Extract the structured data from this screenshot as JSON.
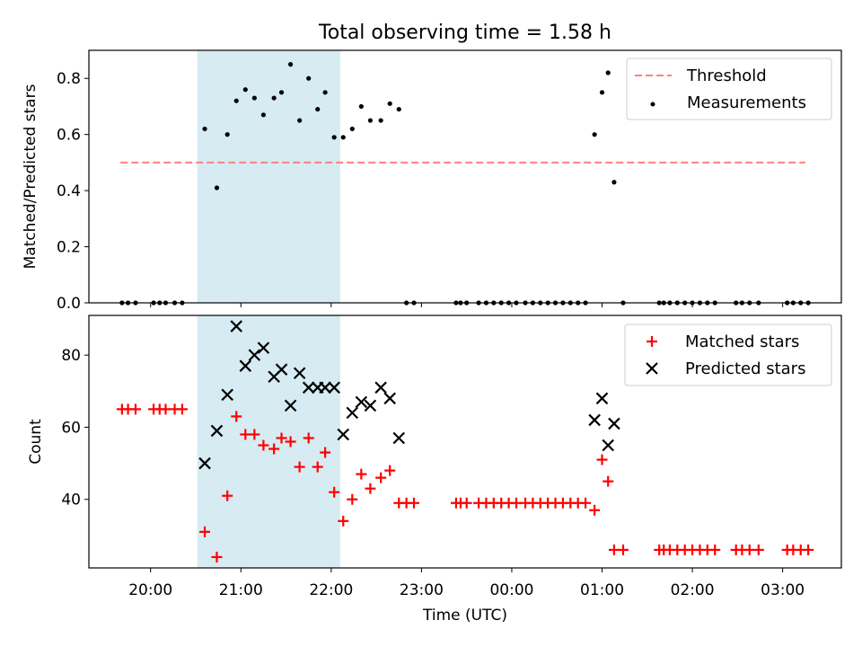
{
  "chart_data": {
    "title": "Total observing time = 1.58 h",
    "xlabel": "Time (UTC)",
    "x_range": [
      "19:19",
      "03:39"
    ],
    "x_ticks": [
      "20:00",
      "21:00",
      "22:00",
      "23:00",
      "00:00",
      "01:00",
      "02:00",
      "03:00"
    ],
    "shaded_interval": {
      "start": "20:31",
      "end": "22:06",
      "color": "#add8e6"
    },
    "panels": [
      {
        "type": "scatter",
        "ylabel": "Matched/Predicted stars",
        "ylim": [
          0,
          0.9
        ],
        "y_ticks": [
          "0.0",
          "0.2",
          "0.4",
          "0.6",
          "0.8"
        ],
        "legend": {
          "position": "top-right"
        },
        "series": [
          {
            "name": "Threshold",
            "type": "line",
            "style": "dashed",
            "color": "#ff7f7f",
            "x": [
              "19:40",
              "03:15"
            ],
            "y": [
              0.5,
              0.5
            ]
          },
          {
            "name": "Measurements",
            "type": "scatter",
            "marker": "dot",
            "color": "#000000",
            "points": [
              [
                "19:41",
                0.0
              ],
              [
                "19:45",
                0.0
              ],
              [
                "19:50",
                0.0
              ],
              [
                "20:02",
                0.0
              ],
              [
                "20:06",
                0.0
              ],
              [
                "20:10",
                0.0
              ],
              [
                "20:16",
                0.0
              ],
              [
                "20:21",
                0.0
              ],
              [
                "20:36",
                0.62
              ],
              [
                "20:44",
                0.41
              ],
              [
                "20:51",
                0.6
              ],
              [
                "20:57",
                0.72
              ],
              [
                "21:03",
                0.76
              ],
              [
                "21:09",
                0.73
              ],
              [
                "21:15",
                0.67
              ],
              [
                "21:22",
                0.73
              ],
              [
                "21:27",
                0.75
              ],
              [
                "21:33",
                0.85
              ],
              [
                "21:39",
                0.65
              ],
              [
                "21:45",
                0.8
              ],
              [
                "21:51",
                0.69
              ],
              [
                "21:56",
                0.75
              ],
              [
                "22:02",
                0.59
              ],
              [
                "22:08",
                0.59
              ],
              [
                "22:14",
                0.62
              ],
              [
                "22:20",
                0.7
              ],
              [
                "22:26",
                0.65
              ],
              [
                "22:33",
                0.65
              ],
              [
                "22:39",
                0.71
              ],
              [
                "22:45",
                0.69
              ],
              [
                "22:50",
                0.0
              ],
              [
                "22:55",
                0.0
              ],
              [
                "23:23",
                0.0
              ],
              [
                "23:26",
                0.0
              ],
              [
                "23:30",
                0.0
              ],
              [
                "23:38",
                0.0
              ],
              [
                "23:43",
                0.0
              ],
              [
                "23:48",
                0.0
              ],
              [
                "23:53",
                0.0
              ],
              [
                "23:58",
                0.0
              ],
              [
                "00:03",
                0.0
              ],
              [
                "00:09",
                0.0
              ],
              [
                "00:14",
                0.0
              ],
              [
                "00:19",
                0.0
              ],
              [
                "00:24",
                0.0
              ],
              [
                "00:29",
                0.0
              ],
              [
                "00:34",
                0.0
              ],
              [
                "00:39",
                0.0
              ],
              [
                "00:44",
                0.0
              ],
              [
                "00:49",
                0.0
              ],
              [
                "00:55",
                0.6
              ],
              [
                "01:00",
                0.75
              ],
              [
                "01:04",
                0.82
              ],
              [
                "01:08",
                0.43
              ],
              [
                "01:14",
                0.0
              ],
              [
                "01:38",
                0.0
              ],
              [
                "01:41",
                0.0
              ],
              [
                "01:45",
                0.0
              ],
              [
                "01:50",
                0.0
              ],
              [
                "01:55",
                0.0
              ],
              [
                "02:00",
                0.0
              ],
              [
                "02:05",
                0.0
              ],
              [
                "02:10",
                0.0
              ],
              [
                "02:15",
                0.0
              ],
              [
                "02:29",
                0.0
              ],
              [
                "02:33",
                0.0
              ],
              [
                "02:38",
                0.0
              ],
              [
                "02:44",
                0.0
              ],
              [
                "03:03",
                0.0
              ],
              [
                "03:07",
                0.0
              ],
              [
                "03:12",
                0.0
              ],
              [
                "03:17",
                0.0
              ]
            ]
          }
        ]
      },
      {
        "type": "scatter",
        "ylabel": "Count",
        "ylim": [
          21,
          91
        ],
        "y_ticks": [
          "40",
          "60",
          "80"
        ],
        "legend": {
          "position": "top-right"
        },
        "series": [
          {
            "name": "Matched stars",
            "marker": "plus",
            "color": "#ff0000",
            "points": [
              [
                "19:41",
                65
              ],
              [
                "19:45",
                65
              ],
              [
                "19:50",
                65
              ],
              [
                "20:02",
                65
              ],
              [
                "20:06",
                65
              ],
              [
                "20:10",
                65
              ],
              [
                "20:16",
                65
              ],
              [
                "20:21",
                65
              ],
              [
                "20:36",
                31
              ],
              [
                "20:44",
                24
              ],
              [
                "20:51",
                41
              ],
              [
                "20:57",
                63
              ],
              [
                "21:03",
                58
              ],
              [
                "21:09",
                58
              ],
              [
                "21:15",
                55
              ],
              [
                "21:22",
                54
              ],
              [
                "21:27",
                57
              ],
              [
                "21:33",
                56
              ],
              [
                "21:39",
                49
              ],
              [
                "21:45",
                57
              ],
              [
                "21:51",
                49
              ],
              [
                "21:56",
                53
              ],
              [
                "22:02",
                42
              ],
              [
                "22:08",
                34
              ],
              [
                "22:14",
                40
              ],
              [
                "22:20",
                47
              ],
              [
                "22:26",
                43
              ],
              [
                "22:33",
                46
              ],
              [
                "22:39",
                48
              ],
              [
                "22:45",
                39
              ],
              [
                "22:50",
                39
              ],
              [
                "22:55",
                39
              ],
              [
                "23:23",
                39
              ],
              [
                "23:26",
                39
              ],
              [
                "23:30",
                39
              ],
              [
                "23:38",
                39
              ],
              [
                "23:43",
                39
              ],
              [
                "23:48",
                39
              ],
              [
                "23:53",
                39
              ],
              [
                "23:58",
                39
              ],
              [
                "00:03",
                39
              ],
              [
                "00:09",
                39
              ],
              [
                "00:14",
                39
              ],
              [
                "00:19",
                39
              ],
              [
                "00:24",
                39
              ],
              [
                "00:29",
                39
              ],
              [
                "00:34",
                39
              ],
              [
                "00:39",
                39
              ],
              [
                "00:44",
                39
              ],
              [
                "00:49",
                39
              ],
              [
                "00:55",
                37
              ],
              [
                "01:00",
                51
              ],
              [
                "01:04",
                45
              ],
              [
                "01:08",
                26
              ],
              [
                "01:14",
                26
              ],
              [
                "01:38",
                26
              ],
              [
                "01:41",
                26
              ],
              [
                "01:45",
                26
              ],
              [
                "01:50",
                26
              ],
              [
                "01:55",
                26
              ],
              [
                "02:00",
                26
              ],
              [
                "02:05",
                26
              ],
              [
                "02:10",
                26
              ],
              [
                "02:15",
                26
              ],
              [
                "02:29",
                26
              ],
              [
                "02:33",
                26
              ],
              [
                "02:38",
                26
              ],
              [
                "02:44",
                26
              ],
              [
                "03:03",
                26
              ],
              [
                "03:07",
                26
              ],
              [
                "03:12",
                26
              ],
              [
                "03:17",
                26
              ]
            ]
          },
          {
            "name": "Predicted stars",
            "marker": "x",
            "color": "#000000",
            "points": [
              [
                "20:36",
                50
              ],
              [
                "20:44",
                59
              ],
              [
                "20:51",
                69
              ],
              [
                "20:57",
                88
              ],
              [
                "21:03",
                77
              ],
              [
                "21:09",
                80
              ],
              [
                "21:15",
                82
              ],
              [
                "21:22",
                74
              ],
              [
                "21:27",
                76
              ],
              [
                "21:33",
                66
              ],
              [
                "21:39",
                75
              ],
              [
                "21:45",
                71
              ],
              [
                "21:51",
                71
              ],
              [
                "21:56",
                71
              ],
              [
                "22:02",
                71
              ],
              [
                "22:08",
                58
              ],
              [
                "22:14",
                64
              ],
              [
                "22:20",
                67
              ],
              [
                "22:26",
                66
              ],
              [
                "22:33",
                71
              ],
              [
                "22:39",
                68
              ],
              [
                "22:45",
                57
              ],
              [
                "00:55",
                62
              ],
              [
                "01:00",
                68
              ],
              [
                "01:04",
                55
              ],
              [
                "01:08",
                61
              ]
            ]
          }
        ]
      }
    ]
  }
}
